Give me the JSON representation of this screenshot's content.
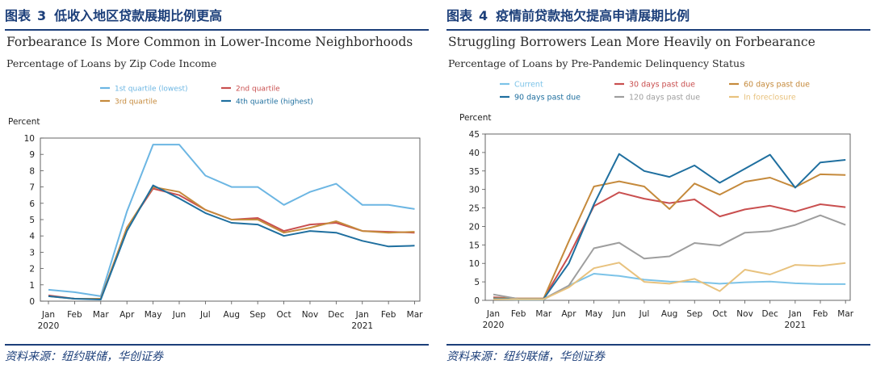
{
  "panels": [
    {
      "caption_label": "图表",
      "caption_number": "3",
      "caption_text": "低收入地区贷款展期比例更高",
      "source": "资料来源：纽约联储，华创证券"
    },
    {
      "caption_label": "图表",
      "caption_number": "4",
      "caption_text": "疫情前贷款拖欠提高申请展期比例",
      "source": "资料来源：纽约联储，华创证券"
    }
  ],
  "chart_data": [
    {
      "type": "line",
      "title": "Forbearance Is More Common in Lower-Income Neighborhoods",
      "subtitle": "Percentage of Loans by Zip Code Income",
      "ylabel": "Percent",
      "xlabel": "",
      "ylim": [
        0,
        10
      ],
      "yticks": [
        0,
        1,
        2,
        3,
        4,
        5,
        6,
        7,
        8,
        9,
        10
      ],
      "grid": false,
      "categories": [
        "Jan",
        "Feb",
        "Mar",
        "Apr",
        "May",
        "Jun",
        "Jul",
        "Aug",
        "Sep",
        "Oct",
        "Nov",
        "Dec",
        "Jan",
        "Feb",
        "Mar"
      ],
      "year_labels": [
        {
          "index": 0,
          "label": "2020"
        },
        {
          "index": 12,
          "label": "2021"
        }
      ],
      "legend_columns": 2,
      "series": [
        {
          "name": "1st quartile (lowest)",
          "color": "#6cb6e3",
          "values": [
            0.7,
            0.55,
            0.3,
            5.5,
            9.6,
            9.6,
            7.7,
            7.0,
            7.0,
            5.9,
            6.7,
            7.2,
            5.9,
            5.9,
            5.65
          ]
        },
        {
          "name": "2nd quartile",
          "color": "#c94f4f",
          "values": [
            0.35,
            0.15,
            0.15,
            4.5,
            6.9,
            6.5,
            5.6,
            5.0,
            5.1,
            4.3,
            4.7,
            4.8,
            4.3,
            4.25,
            4.2
          ]
        },
        {
          "name": "3rd quartile",
          "color": "#c58a3c",
          "values": [
            0.3,
            0.15,
            0.15,
            4.5,
            7.0,
            6.7,
            5.6,
            5.0,
            5.0,
            4.2,
            4.5,
            4.9,
            4.3,
            4.2,
            4.25
          ]
        },
        {
          "name": "4th quartile (highest)",
          "color": "#1f6f9f",
          "values": [
            0.3,
            0.15,
            0.1,
            4.3,
            7.1,
            6.3,
            5.4,
            4.8,
            4.7,
            4.0,
            4.3,
            4.2,
            3.7,
            3.35,
            3.4
          ]
        }
      ]
    },
    {
      "type": "line",
      "title": "Struggling Borrowers Lean More Heavily on Forbearance",
      "subtitle": "Percentage of Loans by Pre-Pandemic Delinquency Status",
      "ylabel": "Percent",
      "xlabel": "",
      "ylim": [
        0,
        45
      ],
      "yticks": [
        0,
        5,
        10,
        15,
        20,
        25,
        30,
        35,
        40,
        45
      ],
      "grid": false,
      "categories": [
        "Jan",
        "Feb",
        "Mar",
        "Apr",
        "May",
        "Jun",
        "Jul",
        "Aug",
        "Sep",
        "Oct",
        "Nov",
        "Dec",
        "Jan",
        "Feb",
        "Mar"
      ],
      "year_labels": [
        {
          "index": 0,
          "label": "2020"
        },
        {
          "index": 12,
          "label": "2021"
        }
      ],
      "legend_columns": 3,
      "series": [
        {
          "name": "Current",
          "color": "#7cc3e8",
          "values": [
            0.3,
            0.2,
            0.2,
            4.0,
            7.2,
            6.6,
            5.6,
            5.1,
            5.0,
            4.5,
            4.9,
            5.1,
            4.6,
            4.4,
            4.4
          ]
        },
        {
          "name": "30 days past due",
          "color": "#c94f4f",
          "values": [
            0.8,
            0.5,
            0.5,
            12.0,
            25.5,
            29.2,
            27.5,
            26.3,
            27.3,
            22.7,
            24.6,
            25.6,
            24.0,
            26.0,
            25.2
          ]
        },
        {
          "name": "60 days past due",
          "color": "#c58a3c",
          "values": [
            0.6,
            0.5,
            0.5,
            16.0,
            30.8,
            32.2,
            30.8,
            24.7,
            31.6,
            28.6,
            32.1,
            33.2,
            30.6,
            34.1,
            33.9
          ]
        },
        {
          "name": "90 days past due",
          "color": "#1f6f9f",
          "values": [
            0.5,
            0.4,
            0.4,
            10.0,
            26.0,
            39.6,
            35.0,
            33.4,
            36.5,
            31.8,
            35.6,
            39.4,
            30.5,
            37.3,
            38.0
          ]
        },
        {
          "name": "120 days past due",
          "color": "#9e9e9e",
          "values": [
            1.6,
            0.4,
            0.4,
            4.0,
            14.1,
            15.6,
            11.3,
            11.9,
            15.5,
            14.8,
            18.3,
            18.7,
            20.4,
            23.0,
            20.4
          ]
        },
        {
          "name": "In foreclosure",
          "color": "#e8c27e",
          "values": [
            0.3,
            0.3,
            0.3,
            3.5,
            8.7,
            10.2,
            5.0,
            4.5,
            5.8,
            2.5,
            8.3,
            7.0,
            9.6,
            9.3,
            10.1
          ]
        }
      ]
    }
  ]
}
